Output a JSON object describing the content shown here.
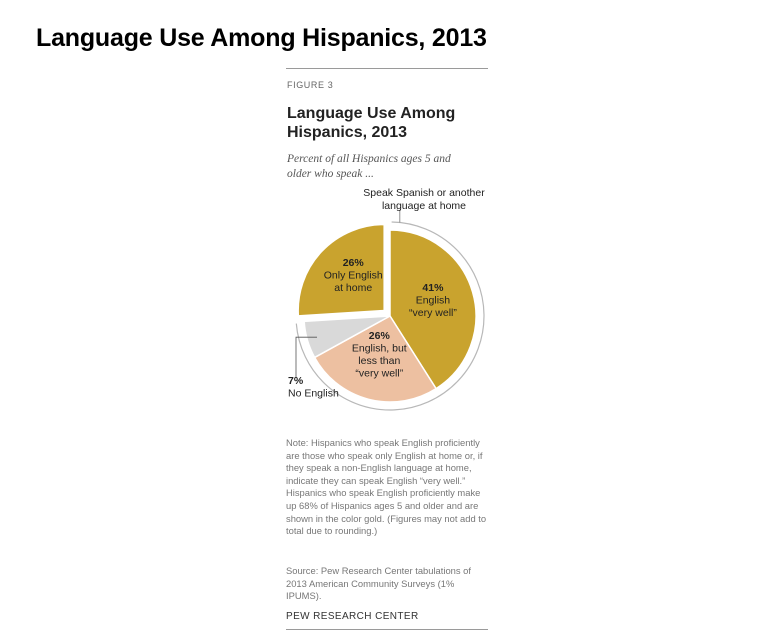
{
  "header": {
    "title": "Language Use Among Hispanics, 2013"
  },
  "figure": {
    "label": "FIGURE 3",
    "title_line1": "Language Use Among",
    "title_line2": "Hispanics, 2013",
    "subtitle_line1": "Percent of all Hispanics ages 5 and",
    "subtitle_line2": "older who speak ...",
    "note": "Note: Hispanics who speak English proficiently are those who speak only English at home or, if they speak a non-English language at home, indicate they can speak English “very well.” Hispanics who speak English proficiently make up 68% of Hispanics ages 5 and older and are shown in the color gold. (Figures may not add to total due to rounding.)",
    "source": "Source: Pew Research Center tabulations of 2013 American Community Surveys (1% IPUMS).",
    "organization": "PEW RESEARCH CENTER"
  },
  "chart_data": {
    "type": "pie",
    "title": "Language Use Among Hispanics, 2013",
    "subtitle": "Percent of all Hispanics ages 5 and older who speak ...",
    "group_annotation": {
      "line1": "Speak Spanish or another",
      "line2": "language at home"
    },
    "slices": [
      {
        "value": 41,
        "value_label": "41%",
        "label_lines": [
          "English",
          "“very well”"
        ],
        "color": "#c9a32e",
        "exploded": false
      },
      {
        "value": 26,
        "value_label": "26%",
        "label_lines": [
          "English, but",
          "less than",
          "“very well”"
        ],
        "color": "#edc0a1",
        "exploded": false
      },
      {
        "value": 7,
        "value_label": "7%",
        "label_lines": [
          "No English"
        ],
        "color": "#d9d9d9",
        "exploded": false
      },
      {
        "value": 26,
        "value_label": "26%",
        "label_lines": [
          "Only English",
          "at home"
        ],
        "color": "#c9a32e",
        "exploded": true
      }
    ],
    "colors": {
      "gold": "#c9a32e",
      "peach": "#edc0a1",
      "gray": "#d9d9d9",
      "arc": "#b8b8b8",
      "separator": "#ffffff"
    }
  }
}
